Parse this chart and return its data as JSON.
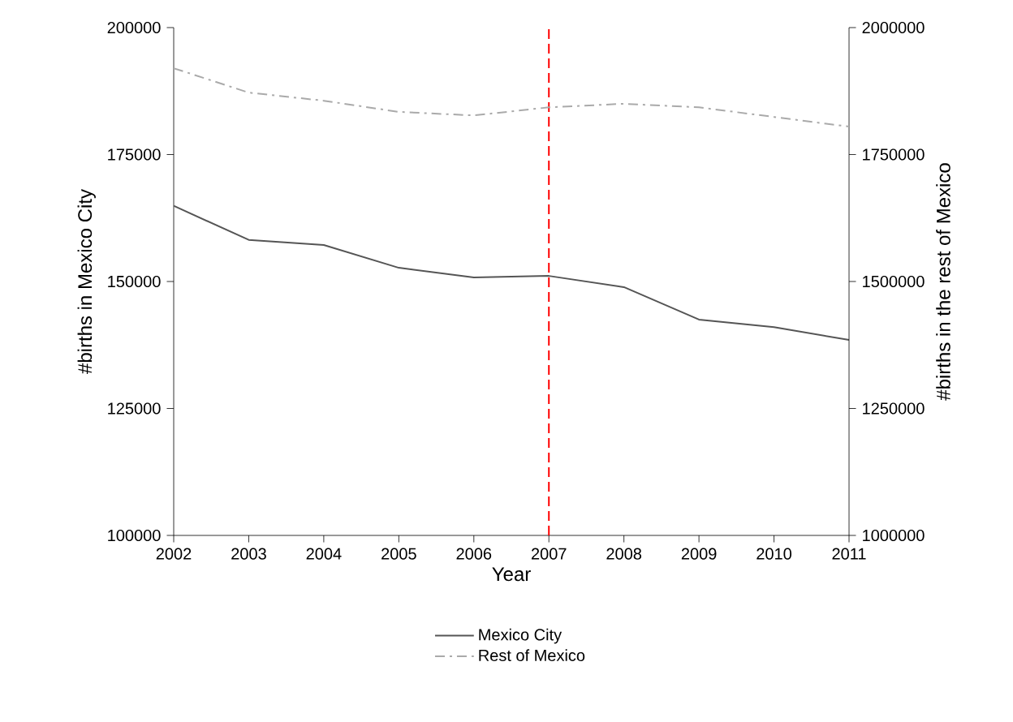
{
  "chart_data": {
    "type": "line",
    "xlabel": "Year",
    "ylabel": "#births in Mexico City",
    "y2label": "#births in the rest of Mexico",
    "x": [
      2002,
      2003,
      2004,
      2005,
      2006,
      2007,
      2008,
      2009,
      2010,
      2011
    ],
    "xlim": [
      2002,
      2011
    ],
    "xticks": [
      2002,
      2003,
      2004,
      2005,
      2006,
      2007,
      2008,
      2009,
      2010,
      2011
    ],
    "ylim": [
      100000,
      200000
    ],
    "yticks": [
      100000,
      125000,
      150000,
      175000,
      200000
    ],
    "y2lim": [
      1000000,
      2000000
    ],
    "y2ticks": [
      1000000,
      1250000,
      1500000,
      1750000,
      2000000
    ],
    "series": [
      {
        "name": "Mexico City",
        "color": "#555555",
        "line_style": "solid",
        "values": [
          164900,
          158200,
          157200,
          152700,
          150800,
          151100,
          148900,
          142500,
          141000,
          138500
        ]
      },
      {
        "name": "Rest of Mexico",
        "color": "#aaaaaa",
        "line_style": "dashed",
        "axis": "y2",
        "values": [
          1920000,
          1872000,
          1856000,
          1834000,
          1827000,
          1843000,
          1850000,
          1843000,
          1824000,
          1805000
        ]
      }
    ],
    "ref_lines": [
      {
        "axis": "x",
        "value": 2007,
        "color": "#ff0000",
        "line_style": "dashed"
      }
    ],
    "legend": "bottom",
    "grid": false,
    "marker": "none"
  }
}
